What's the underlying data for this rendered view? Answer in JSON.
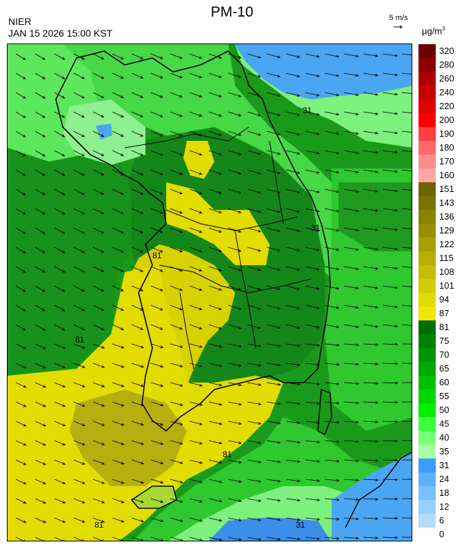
{
  "header": {
    "title": "PM-10",
    "agency": "NIER",
    "timestamp": "JAN 15 2026 15:00 KST",
    "wind_ref": "5 m/s",
    "unit_base": "µg/m",
    "unit_exp": "3"
  },
  "legend": {
    "labels": [
      "320",
      "280",
      "260",
      "240",
      "220",
      "200",
      "190",
      "180",
      "170",
      "160",
      "151",
      "143",
      "136",
      "129",
      "122",
      "115",
      "108",
      "101",
      "94",
      "87",
      "81",
      "75",
      "70",
      "65",
      "60",
      "55",
      "50",
      "45",
      "40",
      "35",
      "31",
      "24",
      "18",
      "12",
      "6",
      "0"
    ],
    "colors": [
      "#6d0000",
      "#8f0000",
      "#ad0000",
      "#c80000",
      "#e00000",
      "#ff0000",
      "#ff4040",
      "#ff6a6a",
      "#ff8c8c",
      "#ffa6a6",
      "#6b6500",
      "#7a7300",
      "#8a8200",
      "#999000",
      "#a8a000",
      "#b7ae00",
      "#c6bd00",
      "#d4cc00",
      "#e3da00",
      "#f0e800",
      "#006e00",
      "#008000",
      "#009400",
      "#00a800",
      "#00c000",
      "#00d800",
      "#00f000",
      "#3cff3c",
      "#78ff78",
      "#a8ffa8",
      "#3c9cff",
      "#5cb2ff",
      "#78c0ff",
      "#96d0ff",
      "#b4dcff"
    ]
  },
  "map": {
    "contour_labels": [
      "31",
      "31",
      "81",
      "81",
      "81",
      "81",
      "31"
    ],
    "colors": {
      "sea_blue": "#4aa6f2",
      "deep_blue": "#3c8ee8",
      "light_green": "#5ce85c",
      "green": "#22c022",
      "dark_green": "#138a13",
      "yellow": "#e2dc00",
      "olive": "#b7ae10",
      "pale_green": "#8ef08e"
    }
  }
}
